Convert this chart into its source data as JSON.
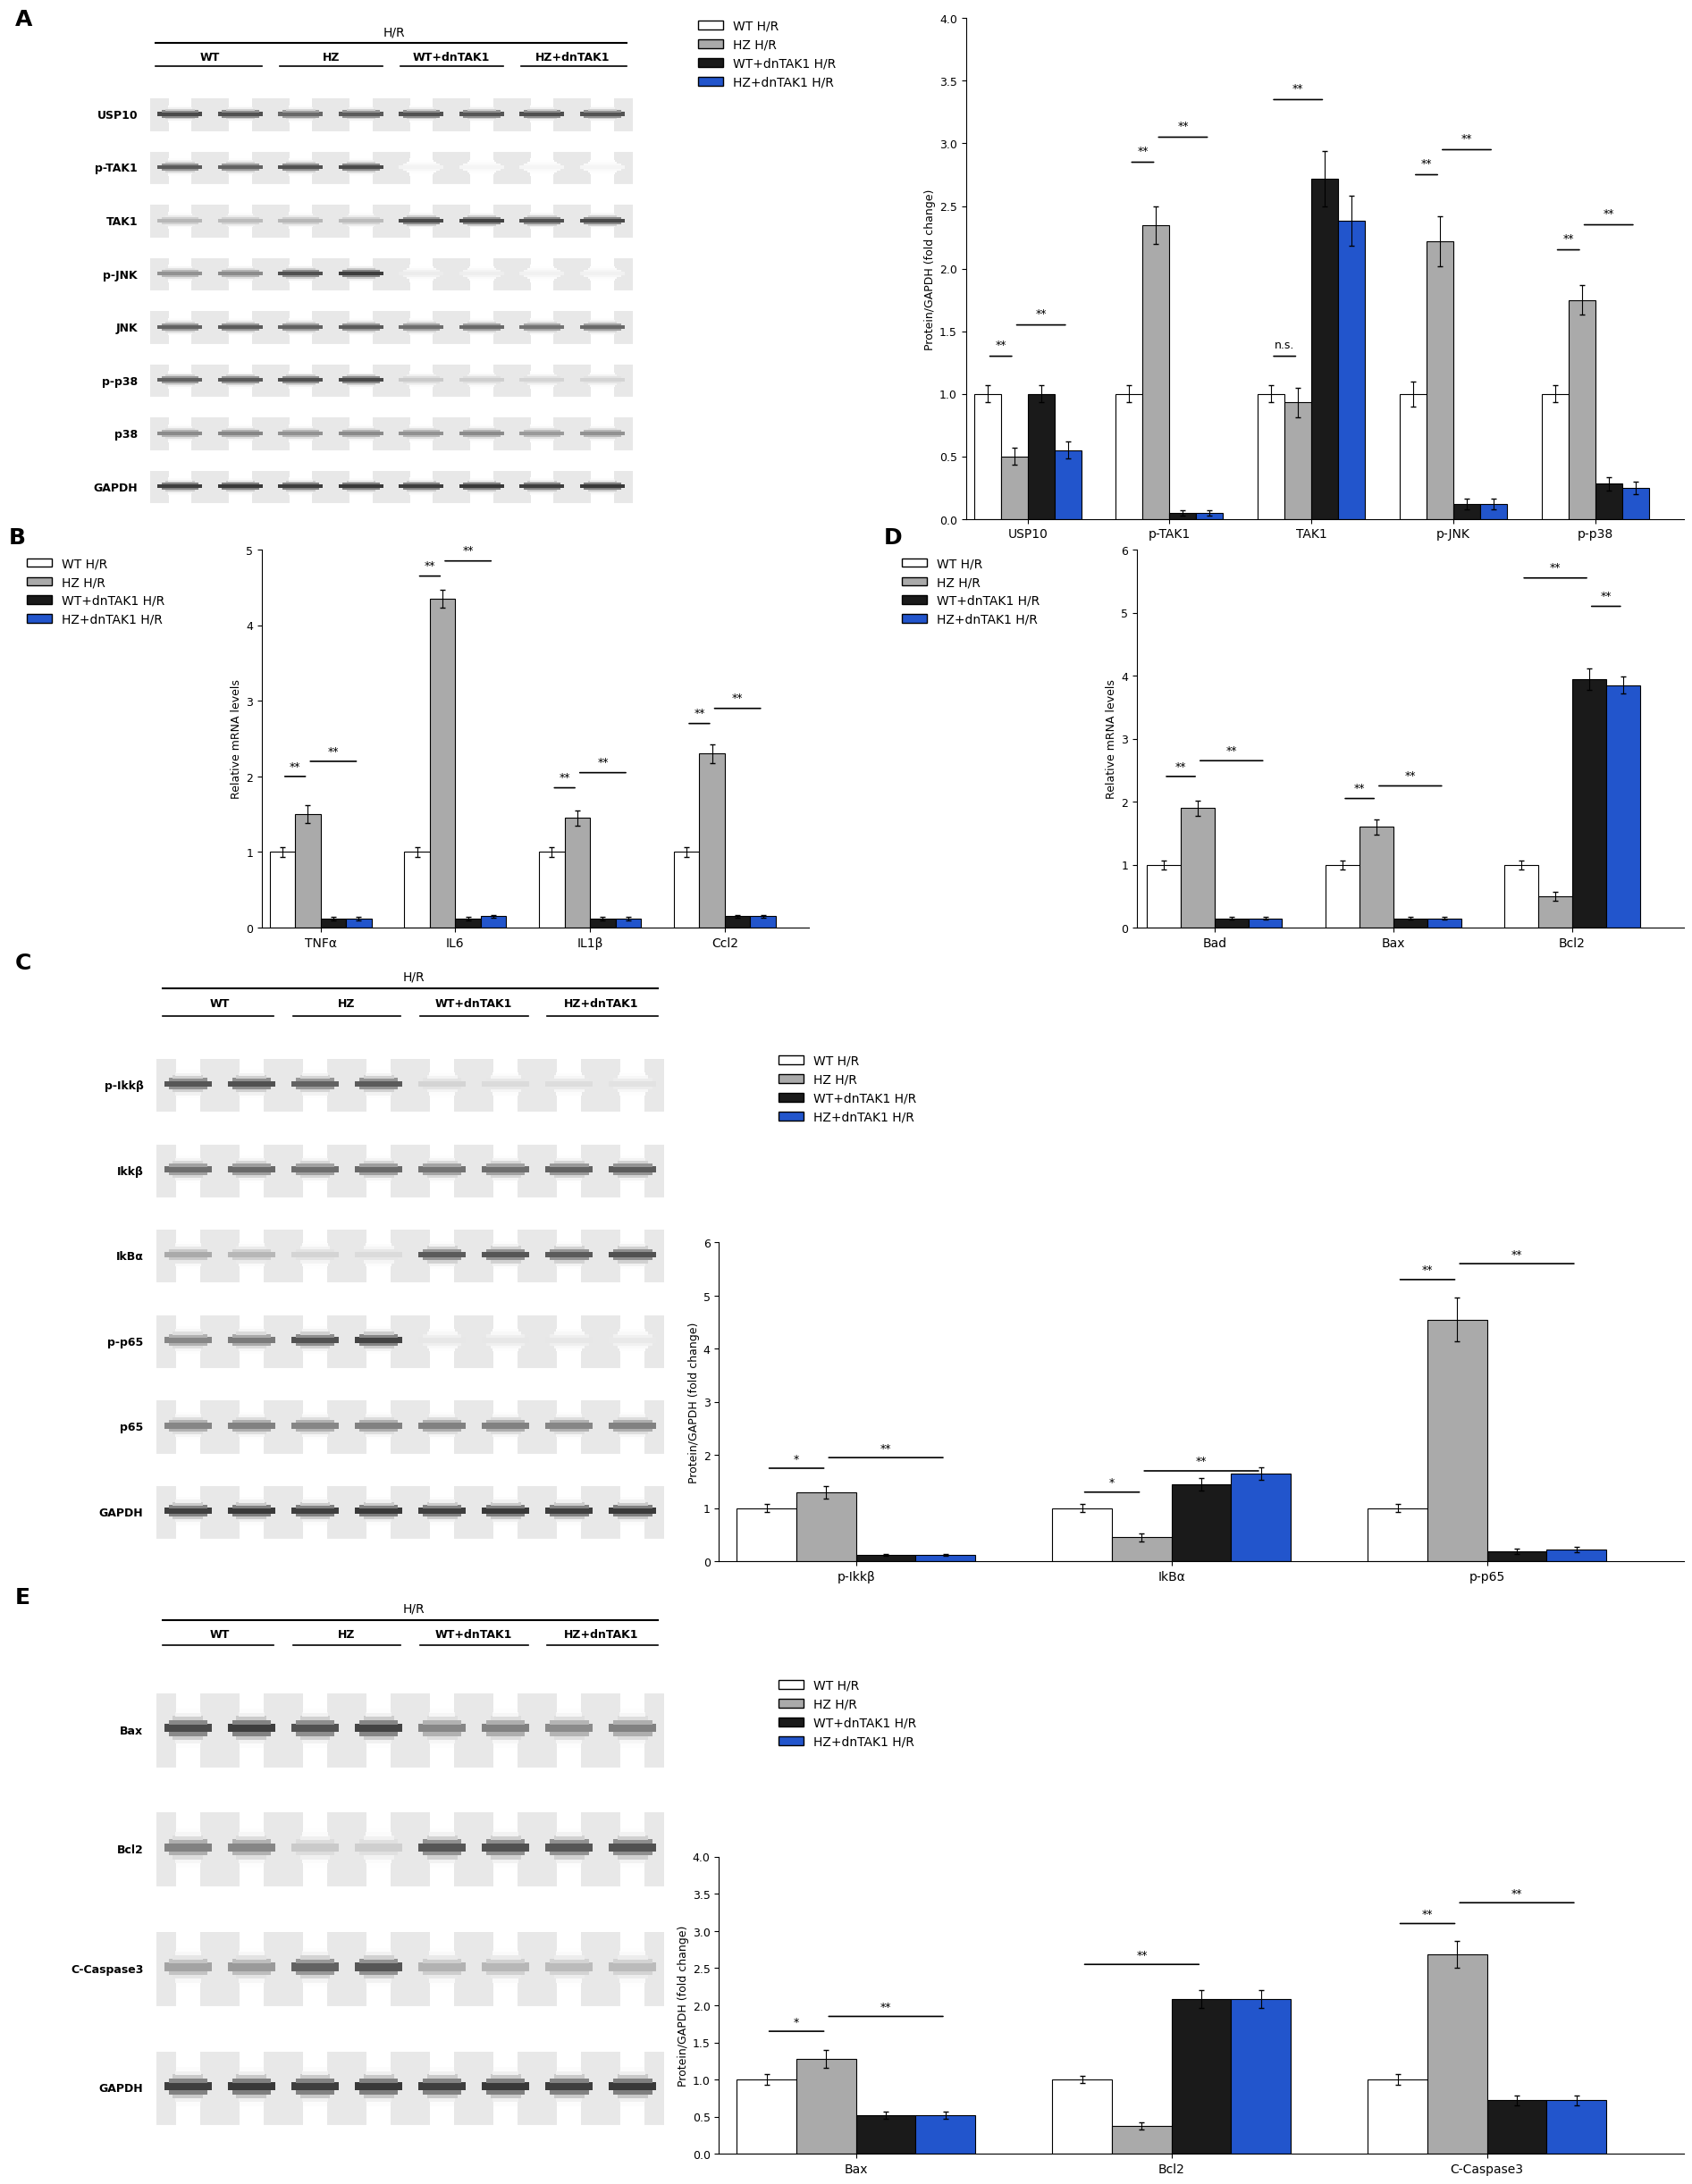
{
  "panel_A_bar": {
    "groups": [
      "USP10",
      "p-TAK1",
      "TAK1",
      "p-JNK",
      "p-p38"
    ],
    "values": [
      [
        1.0,
        0.5,
        1.0,
        0.55
      ],
      [
        1.0,
        2.35,
        0.05,
        0.05
      ],
      [
        1.0,
        0.93,
        2.72,
        2.38
      ],
      [
        1.0,
        2.22,
        0.12,
        0.12
      ],
      [
        1.0,
        1.75,
        0.28,
        0.25
      ]
    ],
    "errors": [
      [
        0.07,
        0.07,
        0.07,
        0.07
      ],
      [
        0.07,
        0.15,
        0.02,
        0.02
      ],
      [
        0.07,
        0.12,
        0.22,
        0.2
      ],
      [
        0.1,
        0.2,
        0.04,
        0.04
      ],
      [
        0.07,
        0.12,
        0.05,
        0.05
      ]
    ],
    "ylabel": "Protein/GAPDH (fold change)",
    "ylim": [
      0,
      4
    ],
    "sig": [
      {
        "x1g": 0,
        "x1b": 0,
        "x2g": 0,
        "x2b": 1,
        "y": 1.3,
        "text": "**"
      },
      {
        "x1g": 0,
        "x1b": 1,
        "x2g": 0,
        "x2b": 3,
        "y": 1.55,
        "text": "**"
      },
      {
        "x1g": 1,
        "x1b": 0,
        "x2g": 1,
        "x2b": 1,
        "y": 2.85,
        "text": "**"
      },
      {
        "x1g": 1,
        "x1b": 1,
        "x2g": 1,
        "x2b": 3,
        "y": 3.05,
        "text": "**"
      },
      {
        "x1g": 2,
        "x1b": 0,
        "x2g": 2,
        "x2b": 1,
        "y": 1.3,
        "text": "n.s."
      },
      {
        "x1g": 2,
        "x1b": 0,
        "x2g": 2,
        "x2b": 2,
        "y": 3.35,
        "text": "**"
      },
      {
        "x1g": 3,
        "x1b": 0,
        "x2g": 3,
        "x2b": 1,
        "y": 2.75,
        "text": "**"
      },
      {
        "x1g": 3,
        "x1b": 1,
        "x2g": 3,
        "x2b": 3,
        "y": 2.95,
        "text": "**"
      },
      {
        "x1g": 4,
        "x1b": 0,
        "x2g": 4,
        "x2b": 1,
        "y": 2.15,
        "text": "**"
      },
      {
        "x1g": 4,
        "x1b": 1,
        "x2g": 4,
        "x2b": 3,
        "y": 2.35,
        "text": "**"
      }
    ]
  },
  "panel_B_bar": {
    "groups": [
      "TNFα",
      "IL6",
      "IL1β",
      "Ccl2"
    ],
    "values": [
      [
        1.0,
        1.5,
        0.12,
        0.12
      ],
      [
        1.0,
        4.35,
        0.12,
        0.15
      ],
      [
        1.0,
        1.45,
        0.12,
        0.12
      ],
      [
        1.0,
        2.3,
        0.15,
        0.15
      ]
    ],
    "errors": [
      [
        0.07,
        0.12,
        0.02,
        0.02
      ],
      [
        0.07,
        0.12,
        0.02,
        0.02
      ],
      [
        0.07,
        0.1,
        0.02,
        0.02
      ],
      [
        0.07,
        0.12,
        0.02,
        0.02
      ]
    ],
    "ylabel": "Relative mRNA levels",
    "ylim": [
      0,
      5
    ],
    "sig": [
      {
        "x1g": 0,
        "x1b": 0,
        "x2g": 0,
        "x2b": 1,
        "y": 2.0,
        "text": "**"
      },
      {
        "x1g": 0,
        "x1b": 1,
        "x2g": 0,
        "x2b": 3,
        "y": 2.2,
        "text": "**"
      },
      {
        "x1g": 1,
        "x1b": 0,
        "x2g": 1,
        "x2b": 1,
        "y": 4.65,
        "text": "**"
      },
      {
        "x1g": 1,
        "x1b": 1,
        "x2g": 1,
        "x2b": 3,
        "y": 4.85,
        "text": "**"
      },
      {
        "x1g": 2,
        "x1b": 0,
        "x2g": 2,
        "x2b": 1,
        "y": 1.85,
        "text": "**"
      },
      {
        "x1g": 2,
        "x1b": 1,
        "x2g": 2,
        "x2b": 3,
        "y": 2.05,
        "text": "**"
      },
      {
        "x1g": 3,
        "x1b": 0,
        "x2g": 3,
        "x2b": 1,
        "y": 2.7,
        "text": "**"
      },
      {
        "x1g": 3,
        "x1b": 1,
        "x2g": 3,
        "x2b": 3,
        "y": 2.9,
        "text": "**"
      }
    ]
  },
  "panel_C_bar": {
    "groups": [
      "p-Ikkβ",
      "IkBα",
      "p-p65"
    ],
    "values": [
      [
        1.0,
        1.3,
        0.12,
        0.12
      ],
      [
        1.0,
        0.45,
        1.45,
        1.65
      ],
      [
        1.0,
        4.55,
        0.18,
        0.22
      ]
    ],
    "errors": [
      [
        0.07,
        0.12,
        0.02,
        0.02
      ],
      [
        0.07,
        0.08,
        0.12,
        0.12
      ],
      [
        0.07,
        0.42,
        0.05,
        0.05
      ]
    ],
    "ylabel": "Protein/GAPDH (fold change)",
    "ylim": [
      0,
      6
    ],
    "sig": [
      {
        "x1g": 0,
        "x1b": 0,
        "x2g": 0,
        "x2b": 1,
        "y": 1.75,
        "text": "*"
      },
      {
        "x1g": 0,
        "x1b": 1,
        "x2g": 0,
        "x2b": 3,
        "y": 1.95,
        "text": "**"
      },
      {
        "x1g": 1,
        "x1b": 0,
        "x2g": 1,
        "x2b": 1,
        "y": 1.3,
        "text": "*"
      },
      {
        "x1g": 1,
        "x1b": 1,
        "x2g": 1,
        "x2b": 3,
        "y": 1.7,
        "text": "**"
      },
      {
        "x1g": 2,
        "x1b": 0,
        "x2g": 2,
        "x2b": 1,
        "y": 5.3,
        "text": "**"
      },
      {
        "x1g": 2,
        "x1b": 1,
        "x2g": 2,
        "x2b": 3,
        "y": 5.6,
        "text": "**"
      }
    ]
  },
  "panel_D_bar": {
    "groups": [
      "Bad",
      "Bax",
      "Bcl2"
    ],
    "values": [
      [
        1.0,
        1.9,
        0.15,
        0.15
      ],
      [
        1.0,
        1.6,
        0.15,
        0.15
      ],
      [
        1.0,
        0.5,
        3.95,
        3.85
      ]
    ],
    "errors": [
      [
        0.07,
        0.12,
        0.02,
        0.02
      ],
      [
        0.07,
        0.12,
        0.02,
        0.02
      ],
      [
        0.07,
        0.07,
        0.17,
        0.13
      ]
    ],
    "ylabel": "Relative mRNA levels",
    "ylim": [
      0,
      6
    ],
    "sig": [
      {
        "x1g": 0,
        "x1b": 0,
        "x2g": 0,
        "x2b": 1,
        "y": 2.4,
        "text": "**"
      },
      {
        "x1g": 0,
        "x1b": 1,
        "x2g": 0,
        "x2b": 3,
        "y": 2.65,
        "text": "**"
      },
      {
        "x1g": 1,
        "x1b": 0,
        "x2g": 1,
        "x2b": 1,
        "y": 2.05,
        "text": "**"
      },
      {
        "x1g": 1,
        "x1b": 1,
        "x2g": 1,
        "x2b": 3,
        "y": 2.25,
        "text": "**"
      },
      {
        "x1g": 2,
        "x1b": 2,
        "x2g": 2,
        "x2b": 3,
        "y": 5.1,
        "text": "**"
      },
      {
        "x1g": 2,
        "x1b": 0,
        "x2g": 2,
        "x2b": 2,
        "y": 5.55,
        "text": "**"
      }
    ]
  },
  "panel_E_bar": {
    "groups": [
      "Bax",
      "Bcl2",
      "C-Caspase3"
    ],
    "values": [
      [
        1.0,
        1.28,
        0.52,
        0.52
      ],
      [
        1.0,
        0.38,
        2.08,
        2.08
      ],
      [
        1.0,
        2.68,
        0.72,
        0.72
      ]
    ],
    "errors": [
      [
        0.07,
        0.12,
        0.05,
        0.05
      ],
      [
        0.05,
        0.05,
        0.12,
        0.12
      ],
      [
        0.07,
        0.18,
        0.07,
        0.07
      ]
    ],
    "ylabel": "Protein/GAPDH (fold change)",
    "ylim": [
      0,
      4
    ],
    "sig": [
      {
        "x1g": 0,
        "x1b": 0,
        "x2g": 0,
        "x2b": 1,
        "y": 1.65,
        "text": "*"
      },
      {
        "x1g": 0,
        "x1b": 1,
        "x2g": 0,
        "x2b": 3,
        "y": 1.85,
        "text": "**"
      },
      {
        "x1g": 1,
        "x1b": 0,
        "x2g": 1,
        "x2b": 2,
        "y": 2.55,
        "text": "**"
      },
      {
        "x1g": 2,
        "x1b": 0,
        "x2g": 2,
        "x2b": 1,
        "y": 3.1,
        "text": "**"
      },
      {
        "x1g": 2,
        "x1b": 1,
        "x2g": 2,
        "x2b": 3,
        "y": 3.38,
        "text": "**"
      }
    ]
  },
  "bar_face_colors": [
    "#FFFFFF",
    "#AAAAAA",
    "#1A1A1A",
    "#2255CC"
  ],
  "legend_labels": [
    "WT H/R",
    "HZ H/R",
    "WT+dnTAK1 H/R",
    "HZ+dnTAK1 H/R"
  ],
  "wb_A_labels": [
    "USP10",
    "p-TAK1",
    "TAK1",
    "p-JNK",
    "JNK",
    "p-p38",
    "p38",
    "GAPDH"
  ],
  "wb_C_labels": [
    "p-Ikkβ",
    "Ikkβ",
    "IkBα",
    "p-p65",
    "p65",
    "GAPDH"
  ],
  "wb_E_labels": [
    "Bax",
    "Bcl2",
    "C-Caspase3",
    "GAPDH"
  ],
  "wb_col_headers": [
    "WT",
    "HZ",
    "WT+dnTAK1",
    "HZ+dnTAK1"
  ]
}
